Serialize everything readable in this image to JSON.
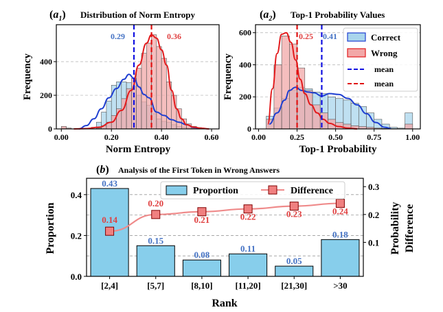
{
  "panels": {
    "a1": {
      "title_letter": "a",
      "title_sub": "1",
      "title_text": "Distribution of Norm Entropy",
      "xlabel": "Norm Entropy",
      "ylabel": "Frequency",
      "mean_correct_label": "0.29",
      "mean_wrong_label": "0.36"
    },
    "a2": {
      "title_letter": "a",
      "title_sub": "2",
      "title_text": "Top-1 Probability Values",
      "xlabel": "Top-1 Probability",
      "ylabel": "Frequency",
      "mean_wrong_label": "0.25",
      "mean_correct_label": "0.41",
      "legend": {
        "correct": "Correct",
        "wrong": "Wrong",
        "mean_blue": "mean",
        "mean_red": "mean"
      }
    },
    "b": {
      "title_letter": "b",
      "title_text": "Analysis of the First Token in Wrong Answers",
      "xlabel": "Rank",
      "ylabel_left": "Proportion",
      "ylabel_right_line1": "Probability",
      "ylabel_right_line2": "Difference",
      "legend": {
        "proportion": "Proportion",
        "difference": "Difference"
      }
    }
  },
  "colors": {
    "correct_fill": "#a9d5ec",
    "correct_line": "#1f3fd1",
    "wrong_fill": "#f2a8a8",
    "wrong_line": "#e31a1c",
    "mean_blue": "#1010e0",
    "mean_red": "#e01010",
    "bar_fill": "#87ceeb",
    "diff_line": "#ef8a8a",
    "diff_marker": "#f08080",
    "label_blue": "#4472c4",
    "label_red": "#e04040"
  },
  "chart_data": [
    {
      "type": "bar",
      "subtype": "histogram",
      "title": "Distribution of Norm Entropy",
      "xlabel": "Norm Entropy",
      "ylabel": "Frequency",
      "xlim": [
        -0.02,
        0.63
      ],
      "ylim": [
        0,
        620
      ],
      "xticks": [
        "0.00",
        "0.20",
        "0.40",
        "0.60"
      ],
      "xtick_values": [
        0.0,
        0.2,
        0.4,
        0.6
      ],
      "yticks": [
        "0",
        "200",
        "400"
      ],
      "ytick_values": [
        0,
        200,
        400
      ],
      "grid": "horizontal dashed",
      "series": [
        {
          "name": "Correct",
          "bin_edges": [
            0.0,
            0.02,
            0.04,
            0.06,
            0.08,
            0.1,
            0.12,
            0.14,
            0.16,
            0.18,
            0.2,
            0.22,
            0.24,
            0.26,
            0.28,
            0.3,
            0.32,
            0.34,
            0.36,
            0.38,
            0.4,
            0.42,
            0.44,
            0.46,
            0.48,
            0.5,
            0.52,
            0.54,
            0.56,
            0.58,
            0.6
          ],
          "values": [
            5,
            2,
            0,
            0,
            0,
            0,
            10,
            40,
            100,
            165,
            260,
            280,
            280,
            275,
            250,
            200,
            160,
            140,
            90,
            60,
            45,
            40,
            25,
            15,
            10,
            5,
            3,
            2,
            0,
            0
          ],
          "kde_x": [
            0.07,
            0.1,
            0.13,
            0.16,
            0.19,
            0.22,
            0.25,
            0.27,
            0.29,
            0.31,
            0.33,
            0.35,
            0.38,
            0.41,
            0.44,
            0.47,
            0.5,
            0.53,
            0.56
          ],
          "kde_y": [
            0,
            20,
            60,
            120,
            185,
            240,
            295,
            325,
            300,
            250,
            205,
            185,
            100,
            80,
            55,
            40,
            25,
            8,
            2
          ],
          "mean": 0.29,
          "mean_label": "0.29"
        },
        {
          "name": "Wrong",
          "bin_edges": [
            0.0,
            0.02,
            0.04,
            0.06,
            0.08,
            0.1,
            0.12,
            0.14,
            0.16,
            0.18,
            0.2,
            0.22,
            0.24,
            0.26,
            0.28,
            0.3,
            0.32,
            0.34,
            0.36,
            0.38,
            0.4,
            0.42,
            0.44,
            0.46,
            0.48,
            0.5,
            0.52,
            0.54,
            0.56,
            0.58,
            0.6
          ],
          "values": [
            15,
            5,
            0,
            0,
            0,
            0,
            0,
            5,
            20,
            40,
            80,
            120,
            180,
            240,
            300,
            360,
            450,
            510,
            560,
            490,
            420,
            280,
            200,
            120,
            60,
            30,
            15,
            8,
            3,
            0
          ],
          "kde_x": [
            0.05,
            0.1,
            0.15,
            0.2,
            0.24,
            0.28,
            0.31,
            0.34,
            0.36,
            0.38,
            0.4,
            0.42,
            0.44,
            0.46,
            0.48,
            0.5,
            0.53,
            0.56,
            0.59
          ],
          "kde_y": [
            0,
            2,
            10,
            40,
            110,
            230,
            380,
            510,
            560,
            540,
            470,
            380,
            230,
            120,
            60,
            25,
            10,
            4,
            0
          ],
          "mean": 0.36,
          "mean_label": "0.36"
        }
      ]
    },
    {
      "type": "bar",
      "subtype": "histogram",
      "title": "Top-1 Probability Values",
      "xlabel": "Top-1 Probability",
      "ylabel": "Frequency",
      "xlim": [
        -0.02,
        1.05
      ],
      "ylim": [
        0,
        650
      ],
      "xticks": [
        "0.00",
        "0.25",
        "0.50",
        "0.75",
        "1.00"
      ],
      "xtick_values": [
        0.0,
        0.25,
        0.5,
        0.75,
        1.0
      ],
      "yticks": [
        "0",
        "200",
        "400",
        "600"
      ],
      "ytick_values": [
        0,
        200,
        400,
        600
      ],
      "grid": "horizontal dashed",
      "legend_position": "top-right",
      "series": [
        {
          "name": "Correct",
          "bin_edges": [
            0.05,
            0.1,
            0.15,
            0.2,
            0.25,
            0.3,
            0.35,
            0.4,
            0.45,
            0.5,
            0.55,
            0.6,
            0.65,
            0.7,
            0.75,
            0.8,
            0.85,
            0.9,
            0.95,
            1.0
          ],
          "values": [
            80,
            130,
            190,
            240,
            260,
            250,
            230,
            220,
            200,
            190,
            180,
            160,
            140,
            100,
            60,
            30,
            10,
            5,
            100
          ],
          "kde_x": [
            0.07,
            0.12,
            0.17,
            0.2,
            0.24,
            0.28,
            0.32,
            0.36,
            0.41,
            0.46,
            0.52,
            0.58,
            0.64,
            0.7,
            0.76,
            0.82,
            0.86
          ],
          "kde_y": [
            30,
            100,
            180,
            240,
            260,
            240,
            230,
            225,
            205,
            220,
            215,
            190,
            150,
            95,
            40,
            10,
            2
          ],
          "mean": 0.41,
          "mean_label": "0.41"
        },
        {
          "name": "Wrong",
          "bin_edges": [
            0.05,
            0.1,
            0.15,
            0.2,
            0.25,
            0.3,
            0.35,
            0.4,
            0.45,
            0.5,
            0.55,
            0.6,
            0.65,
            0.7,
            0.75,
            0.8,
            0.85,
            0.9,
            0.95,
            1.0
          ],
          "values": [
            60,
            400,
            580,
            530,
            380,
            240,
            150,
            100,
            60,
            40,
            30,
            20,
            15,
            10,
            5,
            3,
            2,
            1,
            30
          ],
          "kde_x": [
            0.06,
            0.09,
            0.12,
            0.15,
            0.18,
            0.21,
            0.24,
            0.27,
            0.3,
            0.34,
            0.38,
            0.42,
            0.46,
            0.52,
            0.58,
            0.64
          ],
          "kde_y": [
            30,
            250,
            470,
            590,
            600,
            540,
            430,
            310,
            220,
            150,
            100,
            60,
            35,
            15,
            5,
            0
          ],
          "mean": 0.25,
          "mean_label": "0.25"
        }
      ]
    },
    {
      "type": "bar",
      "title": "Analysis of the First Token in Wrong Answers",
      "xlabel": "Rank",
      "ylabel": "Proportion",
      "y2label": "Probability Difference",
      "categories": [
        "[2,4]",
        "[5,7]",
        "[8,10]",
        "[11,20]",
        "[21,30]",
        ">30"
      ],
      "ylim": [
        0,
        0.48
      ],
      "yticks": [
        "0.0",
        "0.2",
        "0.4"
      ],
      "ytick_values": [
        0.0,
        0.2,
        0.4
      ],
      "y2lim": [
        -0.022,
        0.33
      ],
      "y2ticks": [
        "0.1",
        "0.2",
        "0.3"
      ],
      "y2tick_values": [
        0.1,
        0.2,
        0.3
      ],
      "grid": "horizontal dashed",
      "legend_position": "top",
      "series": [
        {
          "name": "Proportion",
          "kind": "bar",
          "axis": "left",
          "values": [
            0.43,
            0.15,
            0.08,
            0.11,
            0.05,
            0.18
          ],
          "labels": [
            "0.43",
            "0.15",
            "0.08",
            "0.11",
            "0.05",
            "0.18"
          ]
        },
        {
          "name": "Difference",
          "kind": "line",
          "axis": "right",
          "values": [
            0.14,
            0.2,
            0.21,
            0.22,
            0.23,
            0.24
          ],
          "labels": [
            "0.14",
            "0.20",
            "0.21",
            "0.22",
            "0.23",
            "0.24"
          ]
        }
      ]
    }
  ]
}
